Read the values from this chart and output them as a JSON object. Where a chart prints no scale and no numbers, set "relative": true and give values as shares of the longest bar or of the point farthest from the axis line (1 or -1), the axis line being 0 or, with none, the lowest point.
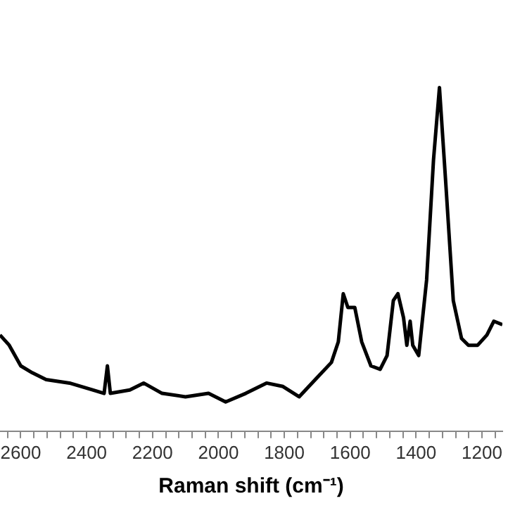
{
  "chart_data": {
    "type": "line",
    "xlabel": "Raman shift (cm⁻¹)",
    "relative": true,
    "xlim": [
      2663,
      1138
    ],
    "xticks": [
      {
        "value": 2640,
        "label": null
      },
      2600,
      {
        "value": 2560,
        "label": null
      },
      {
        "value": 2520,
        "label": null
      },
      {
        "value": 2480,
        "label": null
      },
      {
        "value": 2440,
        "label": null
      },
      2400,
      {
        "value": 2360,
        "label": null
      },
      {
        "value": 2320,
        "label": null
      },
      {
        "value": 2280,
        "label": null
      },
      {
        "value": 2240,
        "label": null
      },
      2200,
      {
        "value": 2160,
        "label": null
      },
      {
        "value": 2120,
        "label": null
      },
      {
        "value": 2080,
        "label": null
      },
      {
        "value": 2040,
        "label": null
      },
      2000,
      {
        "value": 1960,
        "label": null
      },
      {
        "value": 1920,
        "label": null
      },
      {
        "value": 1880,
        "label": null
      },
      {
        "value": 1840,
        "label": null
      },
      1800,
      {
        "value": 1760,
        "label": null
      },
      {
        "value": 1720,
        "label": null
      },
      {
        "value": 1680,
        "label": null
      },
      {
        "value": 1640,
        "label": null
      },
      1600,
      {
        "value": 1560,
        "label": null
      },
      {
        "value": 1520,
        "label": null
      },
      {
        "value": 1480,
        "label": null
      },
      {
        "value": 1440,
        "label": null
      },
      1400,
      {
        "value": 1360,
        "label": null
      },
      {
        "value": 1320,
        "label": null
      },
      {
        "value": 1280,
        "label": null
      },
      {
        "value": 1240,
        "label": null
      },
      1200,
      {
        "value": 1160,
        "label": null
      }
    ],
    "tick_labels": "x",
    "grid": false,
    "legend": false,
    "marker": "none",
    "line_style": "solid",
    "series": [
      {
        "color": "#000000",
        "x": [
          2663,
          2635,
          2600,
          2565,
          2523,
          2452,
          2382,
          2347,
          2337,
          2328,
          2269,
          2227,
          2171,
          2100,
          2030,
          1978,
          1917,
          1854,
          1804,
          1755,
          1706,
          1657,
          1636,
          1621,
          1607,
          1586,
          1565,
          1537,
          1509,
          1488,
          1469,
          1455,
          1438,
          1428,
          1418,
          1410,
          1392,
          1368,
          1347,
          1329,
          1309,
          1287,
          1262,
          1241,
          1213,
          1185,
          1164,
          1138
        ],
        "values": [
          0.28,
          0.25,
          0.19,
          0.17,
          0.15,
          0.14,
          0.12,
          0.11,
          0.19,
          0.11,
          0.12,
          0.14,
          0.11,
          0.1,
          0.11,
          0.085,
          0.11,
          0.14,
          0.13,
          0.1,
          0.15,
          0.2,
          0.26,
          0.4,
          0.36,
          0.36,
          0.26,
          0.19,
          0.18,
          0.22,
          0.38,
          0.4,
          0.33,
          0.25,
          0.32,
          0.25,
          0.22,
          0.44,
          0.79,
          1,
          0.71,
          0.38,
          0.27,
          0.25,
          0.25,
          0.28,
          0.32,
          0.31
        ]
      }
    ]
  }
}
